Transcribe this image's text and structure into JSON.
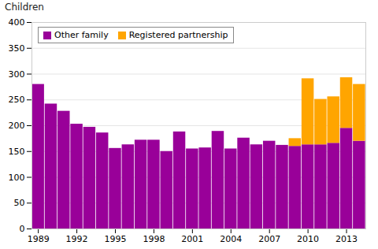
{
  "chart_data": {
    "type": "bar",
    "stacked": true,
    "ylabel": "Children",
    "x": [
      1989,
      1990,
      1991,
      1992,
      1993,
      1994,
      1995,
      1996,
      1997,
      1998,
      1999,
      2000,
      2001,
      2002,
      2003,
      2004,
      2005,
      2006,
      2007,
      2008,
      2009,
      2010,
      2011,
      2012,
      2013,
      2014
    ],
    "series": [
      {
        "name": "Other family",
        "color": "#990099",
        "values": [
          280,
          242,
          228,
          203,
          197,
          186,
          156,
          163,
          172,
          172,
          150,
          188,
          155,
          157,
          189,
          155,
          176,
          163,
          170,
          162,
          160,
          163,
          163,
          166,
          195,
          170
        ]
      },
      {
        "name": "Registered partnership",
        "color": "#FFA500",
        "values": [
          0,
          0,
          0,
          0,
          0,
          0,
          0,
          0,
          0,
          0,
          0,
          0,
          0,
          0,
          0,
          0,
          0,
          0,
          0,
          0,
          15,
          128,
          88,
          90,
          98,
          110
        ]
      }
    ],
    "xlim": [
      1988.5,
      2014.5
    ],
    "xticks": [
      1989,
      1992,
      1995,
      1998,
      2001,
      2004,
      2007,
      2010,
      2013
    ],
    "ylim": [
      0,
      400
    ],
    "yticks": [
      0,
      50,
      100,
      150,
      200,
      250,
      300,
      350,
      400
    ],
    "grid": true,
    "legend": "upper left"
  }
}
